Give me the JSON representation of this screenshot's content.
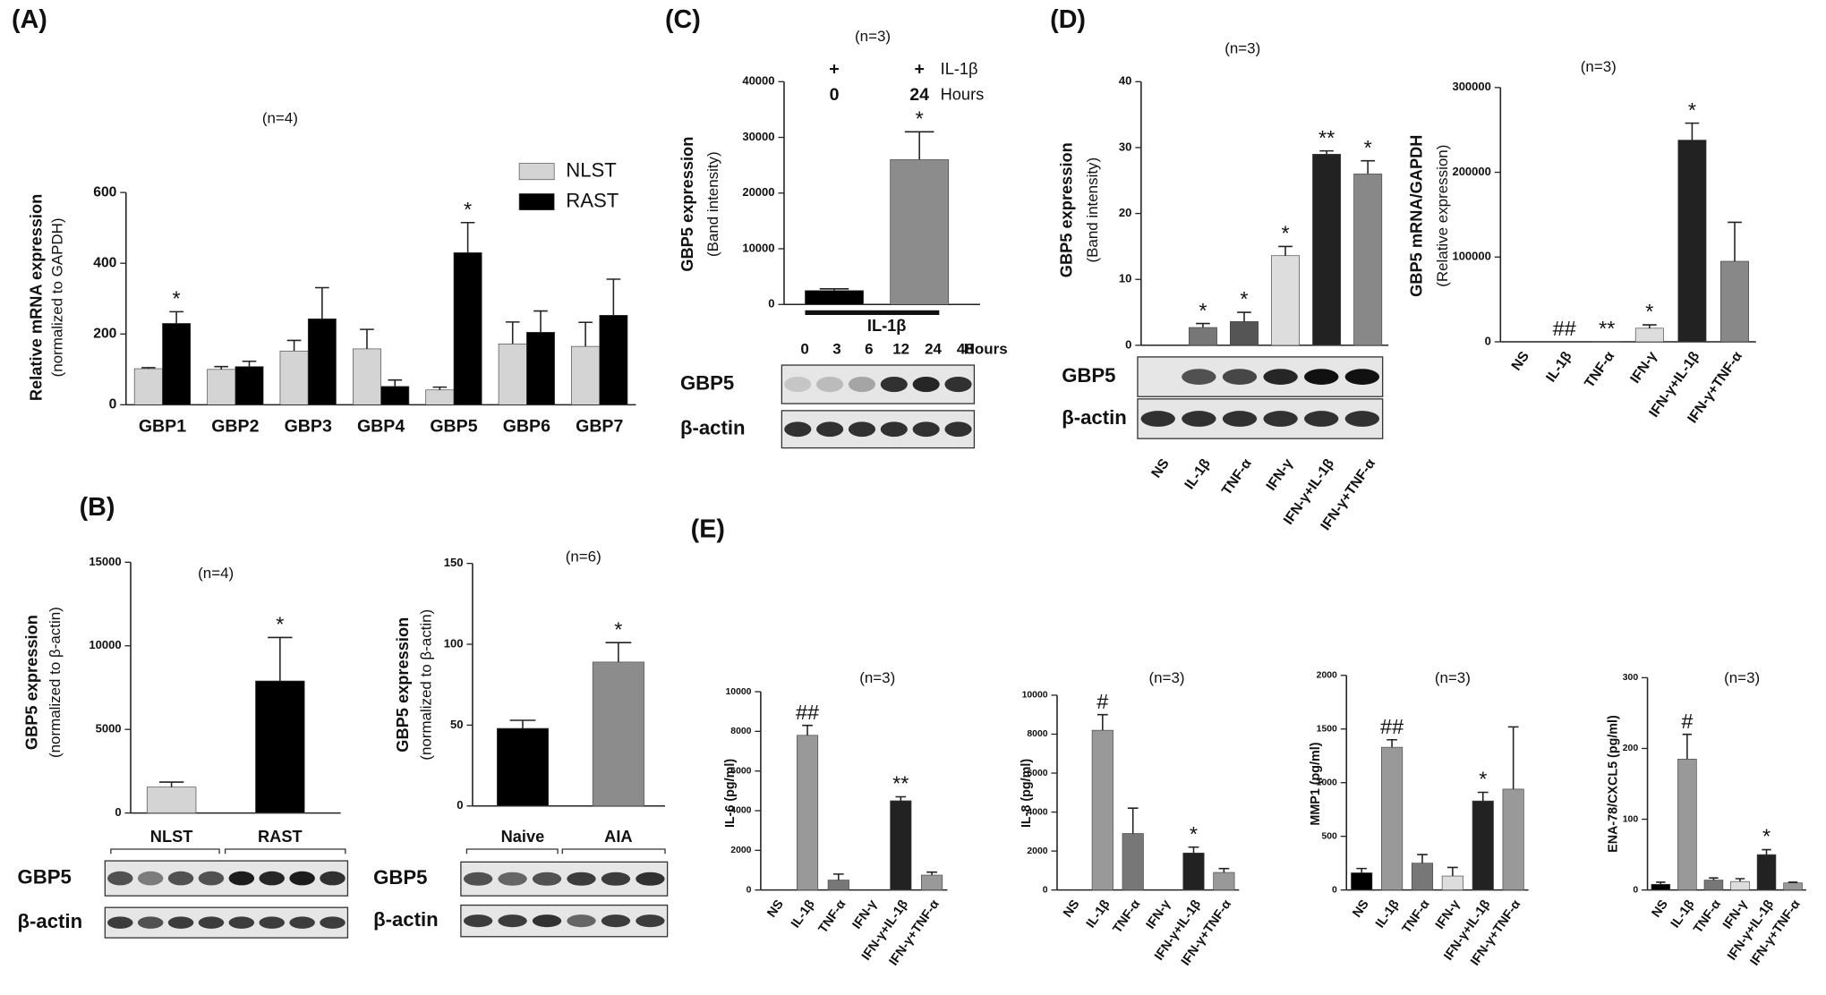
{
  "chart_data": [
    {
      "type": "bar",
      "panel": "(A)",
      "title": "(n=4)",
      "y_label": "Relative mRNA expression",
      "y_label_sub": "(normalized to GAPDH)",
      "categories": [
        "GBP1",
        "GBP2",
        "GBP3",
        "GBP4",
        "GBP5",
        "GBP6",
        "GBP7"
      ],
      "series": [
        {
          "name": "NLST",
          "color": "#d4d4d4",
          "values": [
            102,
            100,
            152,
            158,
            42,
            172,
            165
          ],
          "errors": [
            3,
            8,
            30,
            55,
            8,
            62,
            68
          ],
          "annotations": [
            null,
            null,
            null,
            null,
            null,
            null,
            null
          ]
        },
        {
          "name": "RAST",
          "color": "#000000",
          "values": [
            230,
            108,
            243,
            52,
            430,
            205,
            253
          ],
          "errors": [
            33,
            15,
            88,
            18,
            85,
            60,
            102
          ],
          "annotations": [
            "*",
            null,
            null,
            null,
            "*",
            null,
            null
          ]
        }
      ],
      "ylim": [
        0,
        600
      ],
      "yticks": [
        0,
        200,
        400,
        600
      ],
      "legend": "upper right"
    },
    {
      "type": "bar",
      "panel": "(B)",
      "title": "(n=4)",
      "y_label": "GBP5 expression",
      "y_label_sub": "(normalized to β-actin)",
      "categories": [
        "NLST",
        "RAST"
      ],
      "values": [
        1550,
        7900
      ],
      "errors": [
        300,
        2600
      ],
      "colors": [
        "#d4d4d4",
        "#000000"
      ],
      "annotations": [
        null,
        "*"
      ],
      "ylim": [
        0,
        15000
      ],
      "yticks": [
        0,
        5000,
        10000,
        15000
      ],
      "blot_rows": [
        "GBP5",
        "β-actin"
      ]
    },
    {
      "type": "bar",
      "title": "(n=6)",
      "y_label": "GBP5 expression",
      "y_label_sub": "(normalized to β-actin)",
      "categories": [
        "Naive",
        "AIA"
      ],
      "values": [
        48,
        89
      ],
      "errors": [
        5,
        12
      ],
      "colors": [
        "#000000",
        "#8c8c8c"
      ],
      "annotations": [
        null,
        "*"
      ],
      "ylim": [
        0,
        150
      ],
      "yticks": [
        0,
        50,
        100,
        150
      ],
      "blot_rows": [
        "GBP5",
        "β-actin"
      ]
    },
    {
      "type": "bar",
      "panel": "(C)",
      "title": "(n=3)",
      "y_label": "GBP5 expression",
      "y_label_sub": "(Band intensity)",
      "treatment_marks": [
        "+",
        "+"
      ],
      "treatment": "IL-1β",
      "categories": [
        0,
        24
      ],
      "category_unit": "Hours",
      "values": [
        2500,
        26000
      ],
      "errors": [
        300,
        5000
      ],
      "colors": [
        "#000000",
        "#8c8c8c"
      ],
      "annotations": [
        null,
        "*"
      ],
      "ylim": [
        0,
        40000
      ],
      "yticks": [
        0,
        10000,
        20000,
        30000,
        40000
      ],
      "blot_treatment": "IL-1β",
      "blot_lanes": [
        0,
        3,
        6,
        12,
        24,
        48
      ],
      "blot_lanes_unit": "Hours",
      "blot_rows": [
        "GBP5",
        "β-actin"
      ]
    },
    {
      "type": "bar",
      "panel": "(D)",
      "title": "(n=3)",
      "y_label": "GBP5 expression",
      "y_label_sub": "(Band intensity)",
      "categories": [
        "NS",
        "IL-1β",
        "TNF-α",
        "IFN-γ",
        "IFN-γ+IL-1β",
        "IFN-γ+TNF-α"
      ],
      "values": [
        0,
        2.7,
        3.6,
        13.6,
        29,
        26
      ],
      "errors": [
        null,
        0.6,
        1.4,
        1.4,
        0.5,
        2
      ],
      "colors": [
        "#000000",
        "#777777",
        "#555555",
        "#dddddd",
        "#222222",
        "#888888"
      ],
      "annotations": [
        null,
        "*",
        "*",
        "*",
        "**",
        "*"
      ],
      "ylim": [
        0,
        40
      ],
      "yticks": [
        0,
        10,
        20,
        30,
        40
      ],
      "blot_rows": [
        "GBP5",
        "β-actin"
      ]
    },
    {
      "type": "bar",
      "title": "(n=3)",
      "y_label": "GBP5 mRNA/GAPDH",
      "y_label_sub": "(Relative expression)",
      "categories": [
        "NS",
        "IL-1β",
        "TNF-α",
        "IFN-γ",
        "IFN-γ+IL-1β",
        "IFN-γ+TNF-α"
      ],
      "values": [
        0,
        0,
        300,
        16000,
        238000,
        95000
      ],
      "errors": [
        null,
        null,
        null,
        4000,
        20000,
        46000
      ],
      "colors": [
        "#000000",
        "#777777",
        "#555555",
        "#dddddd",
        "#222222",
        "#888888"
      ],
      "annotations": [
        null,
        "##",
        "**",
        "*",
        "*",
        null
      ],
      "ylim": [
        0,
        300000
      ],
      "yticks": [
        0,
        100000,
        200000,
        300000
      ]
    },
    {
      "type": "bar",
      "panel": "(E)",
      "title": "(n=3)",
      "y_label": "IL-6 (pg/ml)",
      "categories": [
        "NS",
        "IL-1β",
        "TNF-α",
        "IFN-γ",
        "IFN-γ+IL-1β",
        "IFN-γ+TNF-α"
      ],
      "values": [
        0,
        7800,
        500,
        0,
        4500,
        750
      ],
      "errors": [
        null,
        500,
        300,
        null,
        200,
        150
      ],
      "colors": [
        "#000000",
        "#999999",
        "#777777",
        "#dddddd",
        "#222222",
        "#999999"
      ],
      "annotations": [
        null,
        "##",
        null,
        null,
        "**",
        null
      ],
      "ylim": [
        0,
        10000
      ],
      "yticks": [
        0,
        2000,
        4000,
        6000,
        8000,
        10000
      ]
    },
    {
      "type": "bar",
      "title": "(n=3)",
      "y_label": "IL-8 (pg/ml)",
      "categories": [
        "NS",
        "IL-1β",
        "TNF-α",
        "IFN-γ",
        "IFN-γ+IL-1β",
        "IFN-γ+TNF-α"
      ],
      "values": [
        0,
        8200,
        2900,
        0,
        1900,
        900
      ],
      "errors": [
        null,
        800,
        1300,
        null,
        300,
        200
      ],
      "colors": [
        "#000000",
        "#999999",
        "#777777",
        "#dddddd",
        "#222222",
        "#999999"
      ],
      "annotations": [
        null,
        "#",
        null,
        null,
        "*",
        null
      ],
      "ylim": [
        0,
        10000
      ],
      "yticks": [
        0,
        2000,
        4000,
        6000,
        8000,
        10000
      ]
    },
    {
      "type": "bar",
      "title": "(n=3)",
      "y_label": "MMP1 (pg/ml)",
      "categories": [
        "NS",
        "IL-1β",
        "TNF-α",
        "IFN-γ",
        "IFN-γ+IL-1β",
        "IFN-γ+TNF-α"
      ],
      "values": [
        160,
        1330,
        250,
        130,
        830,
        940
      ],
      "errors": [
        40,
        70,
        80,
        80,
        80,
        580
      ],
      "colors": [
        "#000000",
        "#999999",
        "#777777",
        "#dddddd",
        "#222222",
        "#999999"
      ],
      "annotations": [
        null,
        "##",
        null,
        null,
        "*",
        null
      ],
      "ylim": [
        0,
        2000
      ],
      "yticks": [
        0,
        500,
        1000,
        1500,
        2000
      ]
    },
    {
      "type": "bar",
      "title": "(n=3)",
      "y_label": "ENA-78/CXCL5 (pg/ml)",
      "categories": [
        "NS",
        "IL-1β",
        "TNF-α",
        "IFN-γ",
        "IFN-γ+IL-1β",
        "IFN-γ+TNF-α"
      ],
      "values": [
        8,
        185,
        14,
        12,
        50,
        10
      ],
      "errors": [
        3,
        35,
        3,
        4,
        7,
        1
      ],
      "colors": [
        "#000000",
        "#999999",
        "#777777",
        "#dddddd",
        "#222222",
        "#999999"
      ],
      "annotations": [
        null,
        "#",
        null,
        null,
        "*",
        null
      ],
      "ylim": [
        0,
        300
      ],
      "yticks": [
        0,
        100,
        200,
        300
      ]
    }
  ]
}
